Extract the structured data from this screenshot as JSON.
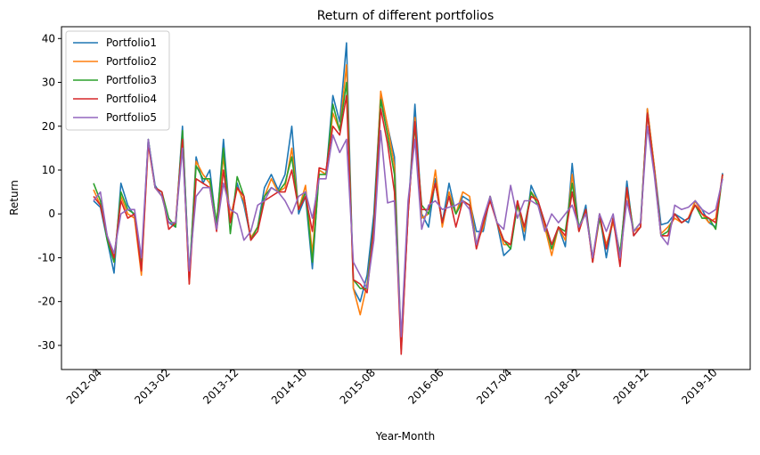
{
  "chart_data": {
    "type": "line",
    "title": "Return of different portfolios",
    "x_label": "Year-Month",
    "y_label": "Return",
    "categories": [
      "2012-04",
      null,
      null,
      null,
      null,
      null,
      null,
      null,
      null,
      null,
      "2013-02",
      null,
      null,
      null,
      null,
      null,
      null,
      null,
      null,
      null,
      "2013-12",
      null,
      null,
      null,
      null,
      null,
      null,
      null,
      null,
      null,
      "2014-10",
      null,
      null,
      null,
      null,
      null,
      null,
      null,
      null,
      null,
      "2015-08",
      null,
      null,
      null,
      null,
      null,
      null,
      null,
      null,
      null,
      "2016-06",
      null,
      null,
      null,
      null,
      null,
      null,
      null,
      null,
      null,
      "2017-04",
      null,
      null,
      null,
      null,
      null,
      null,
      null,
      null,
      null,
      "2018-02",
      null,
      null,
      null,
      null,
      null,
      null,
      null,
      null,
      null,
      "2018-12",
      null,
      null,
      null,
      null,
      null,
      null,
      null,
      null,
      null,
      "2019-10",
      null,
      null
    ],
    "series": [
      {
        "name": "Portfolio1",
        "color": "#1f77b4",
        "values": [
          3,
          1.5,
          -6,
          -13.5,
          7,
          2,
          -0.5,
          -13,
          17,
          6.5,
          4,
          -2,
          -3,
          20,
          -15,
          13,
          7,
          10,
          -3,
          17,
          -2,
          7,
          2,
          -5.5,
          -3,
          6,
          9,
          5.5,
          9,
          20,
          0,
          4,
          -12.5,
          10,
          9,
          27,
          21,
          39,
          -17,
          -20,
          -14,
          0,
          27,
          20,
          13,
          -30,
          0,
          25,
          0,
          -3,
          8,
          -2,
          7,
          0,
          4,
          3,
          -4,
          -4,
          4,
          -2,
          -9.5,
          -8,
          3,
          -6,
          6.5,
          3,
          -2,
          -7,
          -3,
          -7.5,
          11.5,
          -4,
          2,
          -11,
          0,
          -10,
          -1,
          -10,
          7.5,
          -5,
          -3,
          24,
          11,
          -2.5,
          -2,
          0,
          -1,
          -2,
          3,
          1,
          -2,
          -3,
          9.3
        ]
      },
      {
        "name": "Portfolio2",
        "color": "#ff7f0e",
        "values": [
          5.5,
          2,
          -5,
          -11,
          4,
          0,
          -1,
          -14,
          16,
          6,
          4,
          -2,
          -2,
          18,
          -16,
          12,
          9,
          7,
          -2,
          13,
          -1,
          6,
          3,
          -5.5,
          -3,
          4,
          8,
          5,
          6,
          15,
          1,
          6.5,
          -9,
          10,
          9,
          23,
          19,
          34,
          -17,
          -23,
          -16,
          -3,
          28,
          20,
          11,
          -31,
          0,
          22,
          -1,
          0,
          10,
          -3,
          5,
          0,
          5,
          4,
          -7,
          -3,
          4,
          -2,
          -7,
          -7,
          2,
          -4,
          5,
          3,
          -3,
          -9.5,
          -3,
          -6,
          9,
          -4,
          1,
          -11,
          -1,
          -7,
          -2,
          -9,
          5,
          -4,
          -3,
          24,
          11,
          -4.5,
          -3,
          -1,
          -2,
          -1,
          3,
          0,
          -2,
          -1,
          9
        ]
      },
      {
        "name": "Portfolio3",
        "color": "#2ca02c",
        "values": [
          7,
          3,
          -6,
          -11,
          5,
          1,
          0,
          -12,
          17,
          6,
          5,
          -1,
          -3,
          19,
          -14,
          11,
          8,
          8,
          -2,
          15,
          -4.5,
          8.5,
          4,
          -6,
          -3,
          4,
          6,
          5,
          7,
          13,
          1,
          5,
          -11,
          9,
          9,
          25,
          19,
          30,
          -15,
          -17,
          -17,
          -2,
          26,
          18,
          9,
          -31,
          1,
          20,
          2,
          0,
          7,
          -2,
          4,
          0,
          3,
          2,
          -7,
          -2,
          4,
          -2,
          -6,
          -8,
          2,
          -3,
          5,
          2,
          -2,
          -8,
          -3,
          -4,
          7,
          -3,
          1,
          -10,
          -1,
          -8,
          -1,
          -9,
          6,
          -4,
          -2,
          23,
          10,
          -5,
          -4,
          0,
          -2,
          -1,
          2,
          -1,
          -1,
          -3.5,
          9
        ]
      },
      {
        "name": "Portfolio4",
        "color": "#d62728",
        "values": [
          4,
          2,
          -5,
          -10,
          3,
          -1,
          0,
          -13,
          16,
          6,
          5,
          -3.5,
          -2,
          17,
          -16,
          8,
          7,
          6,
          -4,
          10,
          -2,
          6,
          4,
          -6,
          -4,
          3,
          4,
          5,
          5,
          10,
          1,
          4,
          -4,
          10.5,
          10,
          20,
          18,
          27,
          -15,
          -16,
          -18,
          -3,
          24,
          16,
          5,
          -32,
          0,
          21,
          1,
          1,
          7,
          -2,
          4,
          -3,
          3,
          2,
          -8,
          -2,
          3,
          -2,
          -6,
          -7,
          3,
          -3,
          4,
          3,
          -2,
          -7,
          -3,
          -5,
          5,
          -4,
          1,
          -11,
          0,
          -8,
          -1,
          -12,
          6,
          -5,
          -3,
          23,
          10,
          -5,
          -5,
          0,
          -2,
          -1,
          2,
          0,
          -1,
          -2,
          9
        ]
      },
      {
        "name": "Portfolio5",
        "color": "#9467bd",
        "values": [
          3,
          5,
          -5,
          -9,
          0,
          1,
          1,
          -10,
          17,
          6,
          4,
          -2,
          -2,
          15,
          -13,
          4,
          6,
          6,
          -3.5,
          7,
          1,
          0,
          -6,
          -4,
          2,
          3,
          6,
          5,
          3,
          0,
          4,
          5,
          -1,
          8,
          8,
          18,
          14,
          17,
          -11,
          -14,
          -17,
          -6,
          19,
          2.5,
          3,
          -28,
          3,
          17,
          -3.5,
          2,
          3,
          1,
          1.5,
          2,
          3,
          1,
          -7,
          -1,
          4,
          -2,
          -3.5,
          6.5,
          -1,
          3,
          3,
          2,
          -4,
          0,
          -2,
          0,
          2,
          -3,
          0,
          -10,
          0,
          -4,
          0,
          -10,
          3,
          -4,
          -2,
          20,
          9,
          -5,
          -7,
          2,
          1,
          1.5,
          3,
          1,
          0,
          1,
          8
        ]
      }
    ],
    "ylim": [
      -35.5,
      42.7
    ],
    "yticks": [
      -30,
      -20,
      -10,
      0,
      10,
      20,
      30,
      40
    ],
    "grid": false,
    "legend": "upper left"
  }
}
